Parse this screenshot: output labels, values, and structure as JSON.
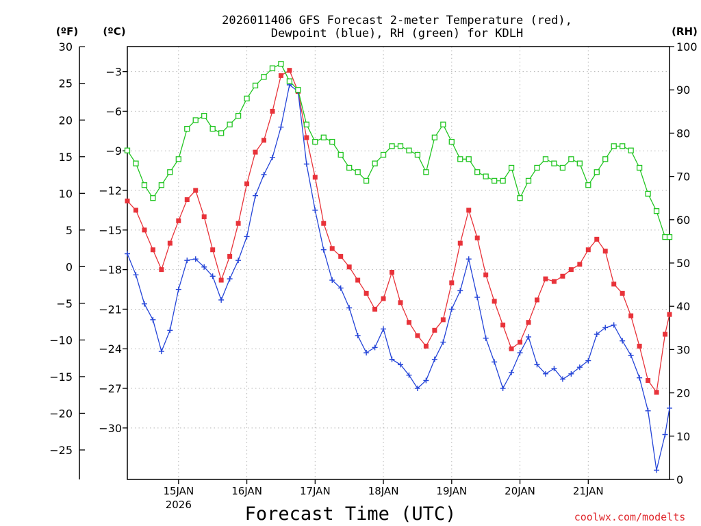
{
  "chart_data": {
    "type": "line",
    "title_line1": "2026011406 GFS Forecast 2-meter Temperature (red),",
    "title_line2": "Dewpoint (blue), RH (green) for KDLH",
    "xlabel": "Forecast Time (UTC)",
    "credit": "coolwx.com/modelts",
    "units": {
      "fahrenheit": "(ºF)",
      "celsius": "(ºC)",
      "rh": "(RH)"
    },
    "x_domain_days": [
      0,
      7.94
    ],
    "x_ticks": [
      {
        "day": 0.75,
        "label": "15JAN",
        "sub": "2026"
      },
      {
        "day": 1.75,
        "label": "16JAN",
        "sub": ""
      },
      {
        "day": 2.75,
        "label": "17JAN",
        "sub": ""
      },
      {
        "day": 3.75,
        "label": "18JAN",
        "sub": ""
      },
      {
        "day": 4.75,
        "label": "19JAN",
        "sub": ""
      },
      {
        "day": 5.75,
        "label": "20JAN",
        "sub": ""
      },
      {
        "day": 6.75,
        "label": "21JAN",
        "sub": ""
      }
    ],
    "celsius_axis": {
      "ylim": [
        -33.9,
        -1.1
      ],
      "ticks": [
        "-3",
        "-6",
        "-9",
        "-12",
        "-15",
        "-18",
        "-21",
        "-24",
        "-27",
        "-30"
      ]
    },
    "fahrenheit_axis": {
      "ticks": [
        "30",
        "25",
        "20",
        "15",
        "10",
        "5",
        "0",
        "-5",
        "-10",
        "-15",
        "-20",
        "-25"
      ]
    },
    "rh_axis": {
      "ylim": [
        0,
        100
      ],
      "ticks": [
        "100",
        "90",
        "80",
        "70",
        "60",
        "50",
        "40",
        "30",
        "20",
        "10",
        "0"
      ]
    },
    "series": [
      {
        "name": "2-meter Temperature",
        "axis": "celsius",
        "color": "#e8333a",
        "marker": "filled-square",
        "points": [
          [
            0.0,
            -12.8
          ],
          [
            0.125,
            -13.5
          ],
          [
            0.25,
            -15
          ],
          [
            0.375,
            -16.5
          ],
          [
            0.5,
            -18
          ],
          [
            0.625,
            -16
          ],
          [
            0.75,
            -14.3
          ],
          [
            0.875,
            -12.7
          ],
          [
            1.0,
            -12
          ],
          [
            1.125,
            -14
          ],
          [
            1.25,
            -16.5
          ],
          [
            1.375,
            -18.8
          ],
          [
            1.5,
            -17
          ],
          [
            1.625,
            -14.5
          ],
          [
            1.75,
            -11.5
          ],
          [
            1.875,
            -9.1
          ],
          [
            2.0,
            -8.2
          ],
          [
            2.125,
            -6
          ],
          [
            2.25,
            -3.3
          ],
          [
            2.375,
            -2.9
          ],
          [
            2.5,
            -4.5
          ],
          [
            2.625,
            -8
          ],
          [
            2.75,
            -11
          ],
          [
            2.875,
            -14.5
          ],
          [
            3.0,
            -16.4
          ],
          [
            3.125,
            -17
          ],
          [
            3.25,
            -17.8
          ],
          [
            3.375,
            -18.8
          ],
          [
            3.5,
            -19.8
          ],
          [
            3.625,
            -21
          ],
          [
            3.75,
            -20.2
          ],
          [
            3.875,
            -18.2
          ],
          [
            4.0,
            -20.5
          ],
          [
            4.125,
            -22
          ],
          [
            4.25,
            -23
          ],
          [
            4.375,
            -23.8
          ],
          [
            4.5,
            -22.6
          ],
          [
            4.625,
            -21.8
          ],
          [
            4.75,
            -19
          ],
          [
            4.875,
            -16
          ],
          [
            5.0,
            -13.5
          ],
          [
            5.125,
            -15.6
          ],
          [
            5.25,
            -18.4
          ],
          [
            5.375,
            -20.4
          ],
          [
            5.5,
            -22.2
          ],
          [
            5.625,
            -24
          ],
          [
            5.75,
            -23.5
          ],
          [
            5.875,
            -22
          ],
          [
            6.0,
            -20.3
          ],
          [
            6.125,
            -18.7
          ],
          [
            6.25,
            -18.9
          ],
          [
            6.375,
            -18.5
          ],
          [
            6.5,
            -18
          ],
          [
            6.625,
            -17.6
          ],
          [
            6.75,
            -16.5
          ],
          [
            6.875,
            -15.7
          ],
          [
            7.0,
            -16.6
          ],
          [
            7.125,
            -19.1
          ],
          [
            7.25,
            -19.8
          ],
          [
            7.375,
            -21.5
          ],
          [
            7.5,
            -23.8
          ],
          [
            7.625,
            -26.4
          ],
          [
            7.75,
            -27.3
          ],
          [
            7.875,
            -22.9
          ],
          [
            7.94,
            -21.4
          ]
        ]
      },
      {
        "name": "Dewpoint",
        "axis": "celsius",
        "color": "#2545d8",
        "marker": "plus",
        "points": [
          [
            0.0,
            -16.8
          ],
          [
            0.125,
            -18.4
          ],
          [
            0.25,
            -20.6
          ],
          [
            0.375,
            -21.8
          ],
          [
            0.5,
            -24.2
          ],
          [
            0.625,
            -22.6
          ],
          [
            0.75,
            -19.5
          ],
          [
            0.875,
            -17.3
          ],
          [
            1.0,
            -17.2
          ],
          [
            1.125,
            -17.8
          ],
          [
            1.25,
            -18.5
          ],
          [
            1.375,
            -20.3
          ],
          [
            1.5,
            -18.7
          ],
          [
            1.625,
            -17.3
          ],
          [
            1.75,
            -15.5
          ],
          [
            1.875,
            -12.4
          ],
          [
            2.0,
            -10.8
          ],
          [
            2.125,
            -9.5
          ],
          [
            2.25,
            -7.2
          ],
          [
            2.375,
            -4
          ],
          [
            2.5,
            -4.5
          ],
          [
            2.625,
            -10
          ],
          [
            2.75,
            -13.5
          ],
          [
            2.875,
            -16.5
          ],
          [
            3.0,
            -18.8
          ],
          [
            3.125,
            -19.4
          ],
          [
            3.25,
            -20.9
          ],
          [
            3.375,
            -23
          ],
          [
            3.5,
            -24.3
          ],
          [
            3.625,
            -23.9
          ],
          [
            3.75,
            -22.5
          ],
          [
            3.875,
            -24.8
          ],
          [
            4.0,
            -25.2
          ],
          [
            4.125,
            -26
          ],
          [
            4.25,
            -27
          ],
          [
            4.375,
            -26.4
          ],
          [
            4.5,
            -24.8
          ],
          [
            4.625,
            -23.5
          ],
          [
            4.75,
            -21
          ],
          [
            4.875,
            -19.6
          ],
          [
            5.0,
            -17.2
          ],
          [
            5.125,
            -20.1
          ],
          [
            5.25,
            -23.2
          ],
          [
            5.375,
            -25
          ],
          [
            5.5,
            -27
          ],
          [
            5.625,
            -25.8
          ],
          [
            5.75,
            -24.3
          ],
          [
            5.875,
            -23.1
          ],
          [
            6.0,
            -25.2
          ],
          [
            6.125,
            -25.9
          ],
          [
            6.25,
            -25.5
          ],
          [
            6.375,
            -26.3
          ],
          [
            6.5,
            -25.9
          ],
          [
            6.625,
            -25.4
          ],
          [
            6.75,
            -24.9
          ],
          [
            6.875,
            -22.9
          ],
          [
            7.0,
            -22.4
          ],
          [
            7.125,
            -22.2
          ],
          [
            7.25,
            -23.4
          ],
          [
            7.375,
            -24.5
          ],
          [
            7.5,
            -26.2
          ],
          [
            7.625,
            -28.7
          ],
          [
            7.75,
            -33.2
          ],
          [
            7.875,
            -30.5
          ],
          [
            7.94,
            -28.5
          ]
        ]
      },
      {
        "name": "Relative Humidity",
        "axis": "rh",
        "color": "#22c522",
        "marker": "open-square",
        "points": [
          [
            0.0,
            76
          ],
          [
            0.125,
            73
          ],
          [
            0.25,
            68
          ],
          [
            0.375,
            65
          ],
          [
            0.5,
            68
          ],
          [
            0.625,
            71
          ],
          [
            0.75,
            74
          ],
          [
            0.875,
            81
          ],
          [
            1.0,
            83
          ],
          [
            1.125,
            84
          ],
          [
            1.25,
            81
          ],
          [
            1.375,
            80
          ],
          [
            1.5,
            82
          ],
          [
            1.625,
            84
          ],
          [
            1.75,
            88
          ],
          [
            1.875,
            91
          ],
          [
            2.0,
            93
          ],
          [
            2.125,
            95
          ],
          [
            2.25,
            96
          ],
          [
            2.375,
            92
          ],
          [
            2.5,
            90
          ],
          [
            2.625,
            82
          ],
          [
            2.75,
            78
          ],
          [
            2.875,
            79
          ],
          [
            3.0,
            78
          ],
          [
            3.125,
            75
          ],
          [
            3.25,
            72
          ],
          [
            3.375,
            71
          ],
          [
            3.5,
            69
          ],
          [
            3.625,
            73
          ],
          [
            3.75,
            75
          ],
          [
            3.875,
            77
          ],
          [
            4.0,
            77
          ],
          [
            4.125,
            76
          ],
          [
            4.25,
            75
          ],
          [
            4.375,
            71
          ],
          [
            4.5,
            79
          ],
          [
            4.625,
            82
          ],
          [
            4.75,
            78
          ],
          [
            4.875,
            74
          ],
          [
            5.0,
            74
          ],
          [
            5.125,
            71
          ],
          [
            5.25,
            70
          ],
          [
            5.375,
            69
          ],
          [
            5.5,
            69
          ],
          [
            5.625,
            72
          ],
          [
            5.75,
            65
          ],
          [
            5.875,
            69
          ],
          [
            6.0,
            72
          ],
          [
            6.125,
            74
          ],
          [
            6.25,
            73
          ],
          [
            6.375,
            72
          ],
          [
            6.5,
            74
          ],
          [
            6.625,
            73
          ],
          [
            6.75,
            68
          ],
          [
            6.875,
            71
          ],
          [
            7.0,
            74
          ],
          [
            7.125,
            77
          ],
          [
            7.25,
            77
          ],
          [
            7.375,
            76
          ],
          [
            7.5,
            72
          ],
          [
            7.625,
            66
          ],
          [
            7.75,
            62
          ],
          [
            7.875,
            56
          ],
          [
            7.94,
            56
          ]
        ]
      }
    ]
  }
}
